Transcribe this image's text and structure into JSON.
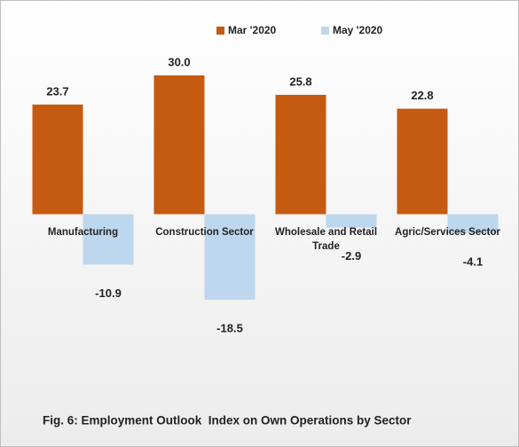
{
  "chart_data": {
    "type": "bar",
    "caption": "Fig. 6: Employment Outlook  Index on Own Operations by Sector",
    "categories": [
      "Manufacturing",
      "Construction Sector",
      "Wholesale and Retail Trade",
      "Agric/Services Sector"
    ],
    "series": [
      {
        "name": "Mar '2020",
        "color": "#c55a11",
        "values": [
          23.7,
          30.0,
          25.8,
          22.8
        ],
        "value_labels": [
          "23.7",
          "30.0",
          "25.8",
          "22.8"
        ]
      },
      {
        "name": "May '2020",
        "color": "#bdd7ee",
        "values": [
          -10.9,
          -18.5,
          -2.9,
          -4.1
        ],
        "value_labels": [
          "-10.9",
          "-18.5",
          "-2.9",
          "-4.1"
        ]
      }
    ],
    "legend": "top"
  }
}
